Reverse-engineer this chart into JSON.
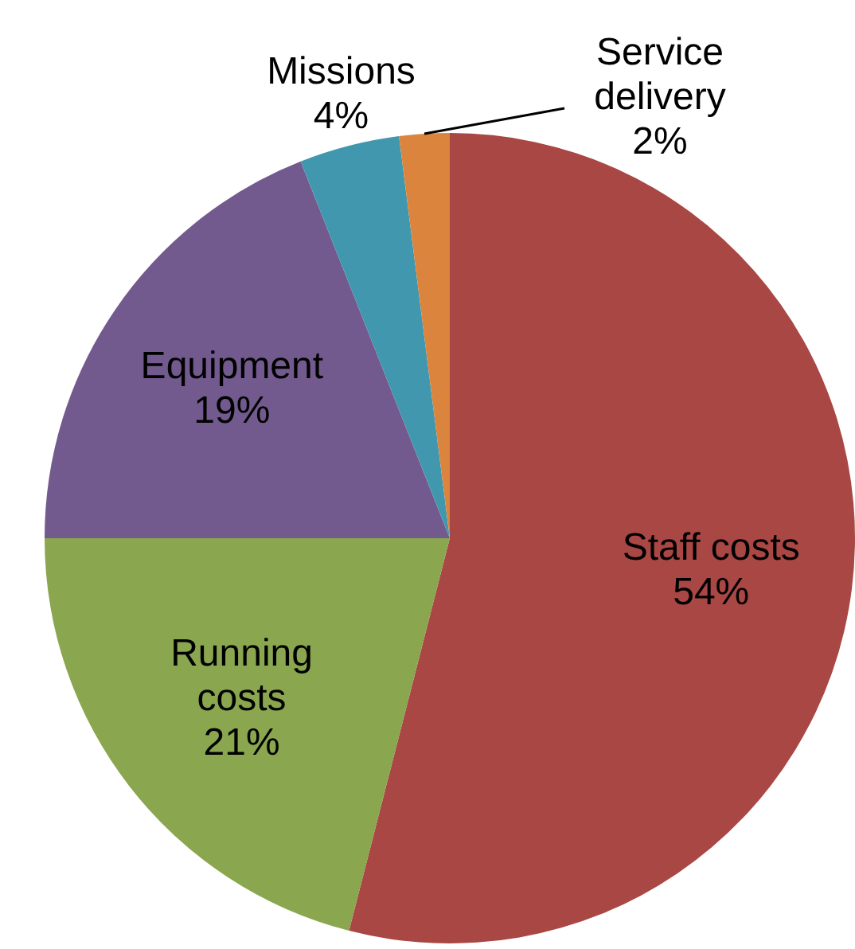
{
  "chart_data": {
    "type": "pie",
    "categories": [
      "Staff costs",
      "Running costs",
      "Equipment",
      "Missions",
      "Service delivery"
    ],
    "values": [
      54,
      21,
      19,
      4,
      2
    ],
    "colors": [
      "#a94744",
      "#8aa64f",
      "#735a8e",
      "#4198ae",
      "#db843d"
    ],
    "value_labels": [
      "54%",
      "21%",
      "19%",
      "4%",
      "2%"
    ]
  }
}
